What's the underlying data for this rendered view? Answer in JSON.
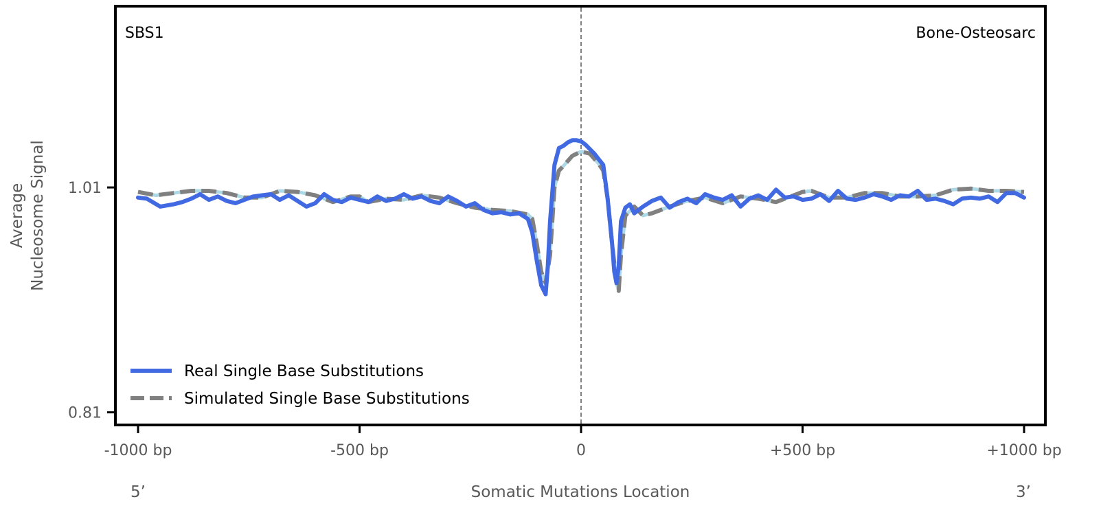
{
  "chart_data": {
    "type": "line",
    "signature_label": "SBS1",
    "cancer_type_label": "Bone-Osteosarc",
    "ylabel_line1": "Average",
    "ylabel_line2": "Nucleosome Signal",
    "xlabel": "Somatic Mutations Location",
    "xlim": [
      -1000,
      1000
    ],
    "ylim": [
      0.8,
      1.17
    ],
    "x_ticks": [
      {
        "value": -1000,
        "label": "-1000 bp"
      },
      {
        "value": -500,
        "label": "-500 bp"
      },
      {
        "value": 0,
        "label": "0"
      },
      {
        "value": 500,
        "label": "+500 bp"
      },
      {
        "value": 1000,
        "label": "+1000 bp"
      }
    ],
    "y_ticks": [
      {
        "value": 1.01,
        "label": "1.01"
      },
      {
        "value": 0.81,
        "label": "0.81"
      }
    ],
    "strand_left_label": "5’",
    "strand_right_label": "3’",
    "center_line_x": 0,
    "grid": false,
    "legend_position": "lower-left",
    "colors": {
      "real": "#4169E1",
      "simulated": "#808080",
      "simulated_band": "#ADD8E6",
      "center_line": "#808080",
      "frame": "#000000"
    },
    "series": [
      {
        "name": "Real Single Base Substitutions",
        "style": "solid",
        "x": [
          -1000,
          -980,
          -950,
          -920,
          -900,
          -880,
          -860,
          -840,
          -820,
          -800,
          -780,
          -760,
          -740,
          -720,
          -700,
          -680,
          -660,
          -640,
          -620,
          -600,
          -580,
          -560,
          -540,
          -520,
          -500,
          -480,
          -460,
          -440,
          -420,
          -400,
          -380,
          -360,
          -340,
          -320,
          -300,
          -280,
          -260,
          -240,
          -220,
          -200,
          -180,
          -160,
          -140,
          -120,
          -110,
          -100,
          -90,
          -80,
          -75,
          -70,
          -60,
          -50,
          -40,
          -30,
          -20,
          -10,
          0,
          10,
          20,
          30,
          40,
          50,
          60,
          70,
          75,
          80,
          85,
          90,
          100,
          110,
          120,
          140,
          160,
          180,
          200,
          220,
          240,
          260,
          280,
          300,
          320,
          340,
          360,
          380,
          400,
          420,
          440,
          460,
          480,
          500,
          520,
          540,
          560,
          580,
          600,
          620,
          640,
          660,
          680,
          700,
          720,
          740,
          760,
          780,
          800,
          820,
          840,
          860,
          880,
          900,
          920,
          940,
          960,
          980,
          1000
        ],
        "values": [
          1.001,
          1.0,
          0.993,
          0.995,
          0.997,
          1.0,
          1.004,
          0.999,
          1.002,
          0.998,
          0.996,
          0.999,
          1.002,
          1.003,
          1.004,
          0.999,
          1.003,
          0.998,
          0.993,
          0.996,
          1.004,
          0.999,
          0.997,
          1.001,
          0.999,
          0.997,
          1.002,
          0.998,
          1.0,
          1.004,
          1.0,
          1.002,
          0.998,
          0.996,
          1.002,
          0.998,
          0.993,
          0.996,
          0.99,
          0.987,
          0.988,
          0.986,
          0.987,
          0.982,
          0.97,
          0.945,
          0.923,
          0.915,
          0.94,
          0.98,
          1.03,
          1.045,
          1.047,
          1.05,
          1.052,
          1.052,
          1.051,
          1.048,
          1.044,
          1.04,
          1.035,
          1.03,
          1.0,
          0.96,
          0.935,
          0.925,
          0.94,
          0.98,
          0.992,
          0.995,
          0.987,
          0.993,
          0.998,
          1.001,
          0.992,
          0.997,
          1.0,
          0.996,
          1.004,
          1.001,
          0.999,
          1.003,
          0.993,
          1.0,
          1.003,
          0.999,
          1.008,
          1.001,
          1.002,
          0.999,
          1.0,
          1.004,
          0.998,
          1.007,
          1.0,
          0.999,
          1.001,
          1.004,
          1.002,
          0.999,
          1.003,
          1.002,
          1.007,
          0.999,
          1.0,
          0.998,
          0.995,
          1.0,
          1.001,
          1.0,
          1.002,
          0.997,
          1.005,
          1.005,
          1.001
        ]
      },
      {
        "name": "Simulated Single Base Substitutions",
        "style": "dashed",
        "x": [
          -1000,
          -960,
          -920,
          -880,
          -840,
          -800,
          -760,
          -720,
          -680,
          -640,
          -600,
          -560,
          -520,
          -500,
          -480,
          -440,
          -400,
          -360,
          -320,
          -280,
          -240,
          -200,
          -160,
          -120,
          -110,
          -100,
          -90,
          -80,
          -70,
          -60,
          -50,
          -40,
          -20,
          0,
          20,
          40,
          50,
          60,
          70,
          80,
          85,
          90,
          100,
          120,
          140,
          160,
          200,
          240,
          280,
          320,
          360,
          400,
          440,
          480,
          500,
          520,
          560,
          600,
          640,
          680,
          720,
          760,
          800,
          840,
          880,
          920,
          960,
          1000
        ],
        "values": [
          1.006,
          1.003,
          1.005,
          1.007,
          1.007,
          1.005,
          1.001,
          1.001,
          1.007,
          1.006,
          1.003,
          0.997,
          1.002,
          1.002,
          0.997,
          1.0,
          0.999,
          1.003,
          1.001,
          0.996,
          0.992,
          0.99,
          0.989,
          0.986,
          0.982,
          0.96,
          0.935,
          0.925,
          0.95,
          1.01,
          1.025,
          1.029,
          1.038,
          1.042,
          1.04,
          1.031,
          1.025,
          1.0,
          0.96,
          0.925,
          0.918,
          0.95,
          0.985,
          0.993,
          0.985,
          0.987,
          0.993,
          0.998,
          1.001,
          0.996,
          1.002,
          1.0,
          0.997,
          1.003,
          1.006,
          1.007,
          1.001,
          1.001,
          1.005,
          1.005,
          1.002,
          1.002,
          1.003,
          1.008,
          1.009,
          1.007,
          1.007,
          1.006
        ]
      }
    ]
  }
}
